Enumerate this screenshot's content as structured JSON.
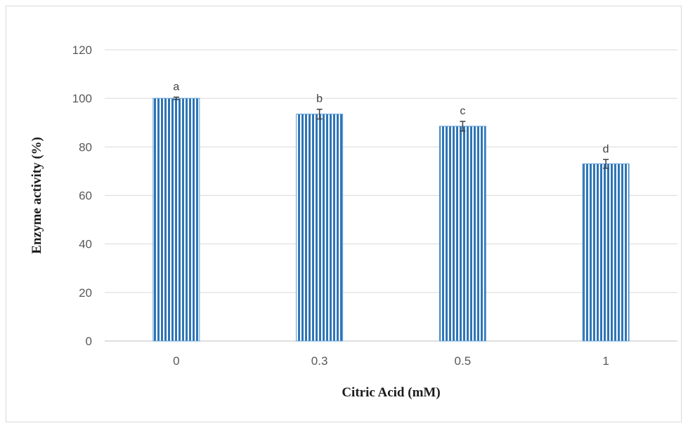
{
  "chart_data": {
    "type": "bar",
    "categories": [
      "0",
      "0.3",
      "0.5",
      "1"
    ],
    "values": [
      100,
      93.5,
      88.5,
      73
    ],
    "errors": [
      0.5,
      2,
      2,
      1.8
    ],
    "significance_labels": [
      "a",
      "b",
      "c",
      "d"
    ],
    "xlabel": "Citric Acid (mM)",
    "ylabel": "Enzyme activity (%)",
    "ylim": [
      0,
      120
    ],
    "yticks": [
      "0",
      "20",
      "40",
      "60",
      "80",
      "100",
      "120"
    ],
    "grid": true,
    "legend": "none",
    "colors": {
      "bar_stripe": "#2e75b6",
      "bar_edge": "#5b9bd5",
      "grid": "#d9d9d9",
      "error_bar": "#404040"
    },
    "bar_pattern": "vertical-stripes"
  }
}
